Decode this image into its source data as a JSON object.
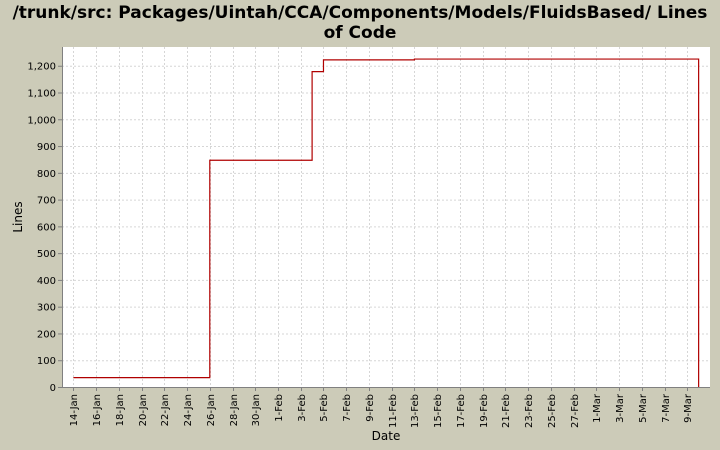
{
  "chart_data": {
    "type": "line",
    "title_lines": [
      "/trunk/src: Packages/Uintah/CCA/Components/Models/FluidsBased/ Lines",
      "of Code"
    ],
    "xlabel": "Date",
    "ylabel": "Lines",
    "ylim": [
      0,
      1270
    ],
    "xlim": [
      "2006-01-13",
      "2006-03-11"
    ],
    "y_ticks": [
      0,
      100,
      200,
      300,
      400,
      500,
      600,
      700,
      800,
      900,
      1000,
      1100,
      1200
    ],
    "y_tick_labels": [
      "0",
      "100",
      "200",
      "300",
      "400",
      "500",
      "600",
      "700",
      "800",
      "900",
      "1,000",
      "1,100",
      "1,200"
    ],
    "x_ticks": [
      "2006-01-14",
      "2006-01-16",
      "2006-01-18",
      "2006-01-20",
      "2006-01-22",
      "2006-01-24",
      "2006-01-26",
      "2006-01-28",
      "2006-01-30",
      "2006-02-01",
      "2006-02-03",
      "2006-02-05",
      "2006-02-07",
      "2006-02-09",
      "2006-02-11",
      "2006-02-13",
      "2006-02-15",
      "2006-02-17",
      "2006-02-19",
      "2006-02-21",
      "2006-02-23",
      "2006-02-25",
      "2006-02-27",
      "2006-03-01",
      "2006-03-03",
      "2006-03-05",
      "2006-03-07",
      "2006-03-09"
    ],
    "x_tick_labels": [
      "14-Jan",
      "16-Jan",
      "18-Jan",
      "20-Jan",
      "22-Jan",
      "24-Jan",
      "26-Jan",
      "28-Jan",
      "30-Jan",
      "1-Feb",
      "3-Feb",
      "5-Feb",
      "7-Feb",
      "9-Feb",
      "11-Feb",
      "13-Feb",
      "15-Feb",
      "17-Feb",
      "19-Feb",
      "21-Feb",
      "23-Feb",
      "25-Feb",
      "27-Feb",
      "1-Mar",
      "3-Mar",
      "5-Mar",
      "7-Mar",
      "9-Mar"
    ],
    "grid": true,
    "series": [
      {
        "color": "#b00000",
        "step": true,
        "points": [
          {
            "x": "2006-01-14",
            "y": 35
          },
          {
            "x": "2006-01-26",
            "y": 847
          },
          {
            "x": "2006-02-04",
            "y": 1178
          },
          {
            "x": "2006-02-05",
            "y": 1222
          },
          {
            "x": "2006-02-13",
            "y": 1225
          },
          {
            "x": "2006-03-10",
            "y": 0
          }
        ]
      }
    ]
  }
}
